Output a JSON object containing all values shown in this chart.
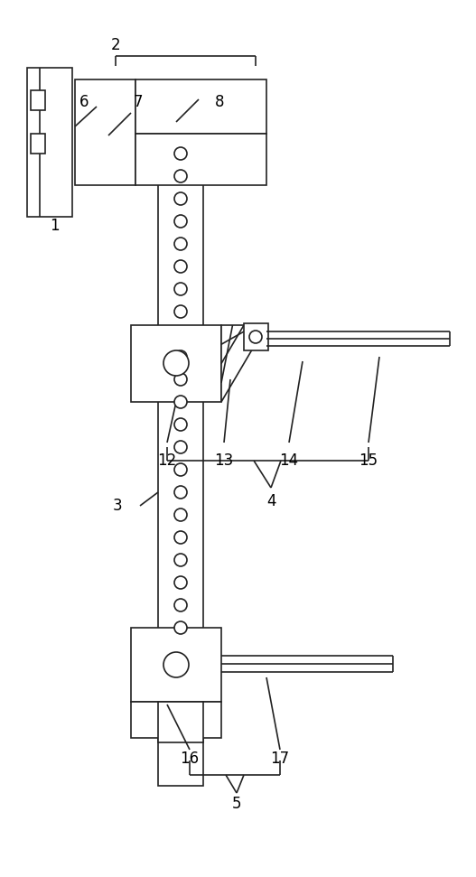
{
  "bg_color": "#ffffff",
  "lc": "#222222",
  "lw": 1.2,
  "fig_w": 5.27,
  "fig_h": 9.71,
  "dpi": 100
}
